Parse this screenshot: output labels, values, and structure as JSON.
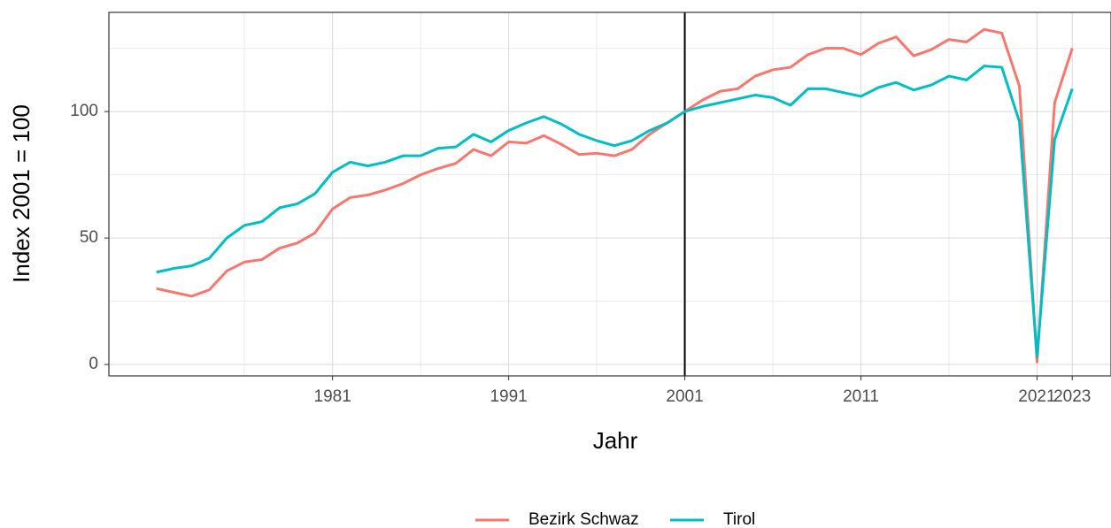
{
  "chart_data": {
    "type": "line",
    "x_label": "Jahr",
    "y_label": "Index 2001 = 100",
    "x": [
      1971,
      1972,
      1973,
      1974,
      1975,
      1976,
      1977,
      1978,
      1979,
      1980,
      1981,
      1982,
      1983,
      1984,
      1985,
      1986,
      1987,
      1988,
      1989,
      1990,
      1991,
      1992,
      1993,
      1994,
      1995,
      1996,
      1997,
      1998,
      1999,
      2000,
      2001,
      2002,
      2003,
      2004,
      2005,
      2006,
      2007,
      2008,
      2009,
      2010,
      2011,
      2012,
      2013,
      2014,
      2015,
      2016,
      2017,
      2018,
      2019,
      2020,
      2021,
      2022,
      2023
    ],
    "series": [
      {
        "name": "Bezirk Schwaz",
        "color": "#F8766D",
        "values": [
          30,
          28.5,
          27,
          29.5,
          37,
          40.5,
          41.5,
          46,
          48,
          52,
          61.5,
          66,
          67,
          69,
          71.5,
          75,
          77.5,
          79.5,
          85,
          82.5,
          88,
          87.5,
          90.5,
          87,
          83,
          83.5,
          82.5,
          85,
          91,
          95.5,
          100,
          104.5,
          108,
          109,
          114,
          116.5,
          117.5,
          122.5,
          125,
          125,
          122.5,
          127,
          129.5,
          122,
          124.5,
          128.5,
          127.5,
          132.5,
          131,
          110,
          1,
          103.5,
          125
        ]
      },
      {
        "name": "Tirol",
        "color": "#00BFC4",
        "values": [
          36.5,
          38,
          39,
          42,
          50,
          55,
          56.5,
          62,
          63.5,
          67.5,
          76,
          80,
          78.5,
          80,
          82.5,
          82.5,
          85.5,
          86,
          91,
          88,
          92.5,
          95.5,
          98,
          95,
          91,
          88.5,
          86.5,
          88.5,
          92.5,
          95.5,
          100,
          102,
          103.5,
          105,
          106.5,
          105.5,
          102.5,
          109,
          109,
          107.5,
          106,
          109.5,
          111.5,
          108.5,
          110.5,
          114,
          112.5,
          118,
          117.5,
          96,
          3,
          89,
          109
        ]
      }
    ],
    "xlim": [
      1968.3,
      2025.2
    ],
    "ylim": [
      -4.5,
      139.2
    ],
    "xticks": [
      1981,
      1991,
      2001,
      2011,
      2021,
      2023
    ],
    "yticks": [
      0,
      50,
      100
    ],
    "x_minor_ticks": [
      1976,
      1986,
      1996,
      2006,
      2016
    ],
    "y_minor_ticks": [
      25,
      75,
      125
    ],
    "vline": 2001,
    "grid": true,
    "legend_position": "bottom"
  }
}
